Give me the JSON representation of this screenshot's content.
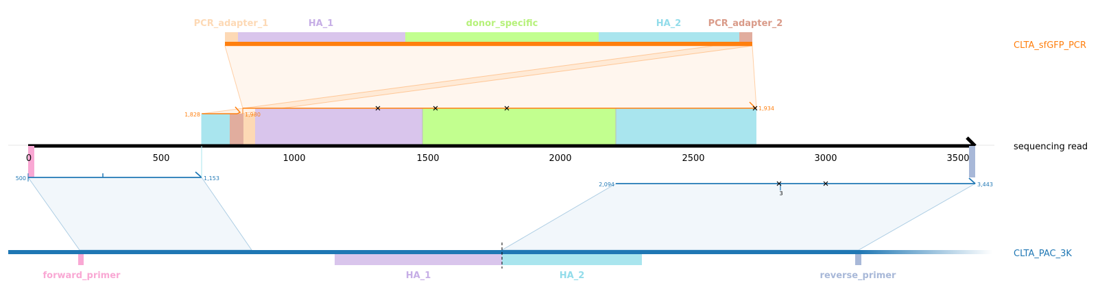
{
  "donor": {
    "name": "CLTA_sfGFP_PCR",
    "features": [
      {
        "label": "PCR_adapter_1",
        "color": "#fdd9b5"
      },
      {
        "label": "HA_1",
        "color": "#d9c5ec"
      },
      {
        "label": "donor_specific",
        "color": "#c2ff8f"
      },
      {
        "label": "HA_2",
        "color": "#a9e5ee"
      },
      {
        "label": "PCR_adapter_2",
        "color": "#e1ad9e"
      }
    ],
    "color": "#ff7f0e"
  },
  "read": {
    "name": "sequencing read",
    "ticks": [
      "0",
      "500",
      "1000",
      "1500",
      "2000",
      "2500",
      "3000",
      "3500"
    ],
    "color": "#000000"
  },
  "donor_alignment": {
    "query_start": "1,828",
    "query_mid": "1,980",
    "query_end": "1,934",
    "mismatches": 4
  },
  "target_alignment_left": {
    "start": "500",
    "end": "1,153"
  },
  "target_alignment_right": {
    "start": "2,094",
    "end": "3,443",
    "indel": "3"
  },
  "target": {
    "name": "CLTA_PAC_3K",
    "features": [
      {
        "label": "forward_primer",
        "color": "#f9a8d4"
      },
      {
        "label": "HA_1",
        "color": "#d9c5ec"
      },
      {
        "label": "HA_2",
        "color": "#a9e5ee"
      },
      {
        "label": "reverse_primer",
        "color": "#a8b8d8"
      }
    ],
    "color": "#1f77b4"
  }
}
